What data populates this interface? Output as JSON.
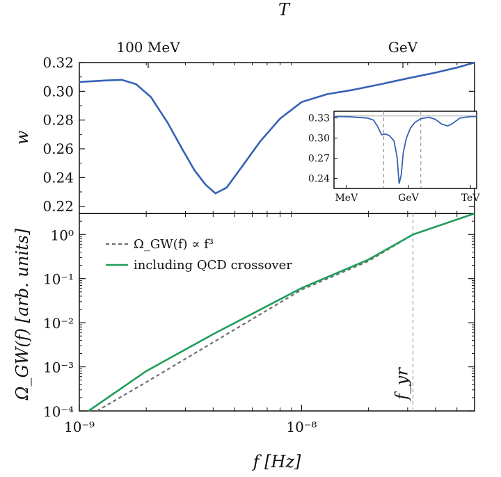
{
  "chart_data": [
    {
      "type": "line",
      "panel": "top",
      "top_axis_label": "T",
      "top_tick_labels": [
        "100 MeV",
        "GeV"
      ],
      "ylabel": "w",
      "y_ticks": [
        "0.32",
        "0.30",
        "0.28",
        "0.26",
        "0.24",
        "0.22"
      ],
      "ylim": [
        0.215,
        0.32
      ],
      "xlim": [
        1e-09,
        6e-08
      ],
      "x_scale": "log",
      "grid": false,
      "series": [
        {
          "color": "#3562b4",
          "x": [
            1e-09,
            1.3e-09,
            1.55e-09,
            1.8e-09,
            2.1e-09,
            2.5e-09,
            2.9e-09,
            3.3e-09,
            3.7e-09,
            4.1e-09,
            4.6e-09,
            5.3e-09,
            6.5e-09,
            8e-09,
            1e-08,
            1.3e-08,
            1.7e-08,
            2.2e-08,
            3e-08,
            4e-08,
            5e-08,
            6e-08
          ],
          "values": [
            0.3065,
            0.3075,
            0.308,
            0.305,
            0.296,
            0.278,
            0.26,
            0.245,
            0.235,
            0.229,
            0.233,
            0.246,
            0.265,
            0.281,
            0.2925,
            0.298,
            0.301,
            0.3045,
            0.309,
            0.313,
            0.3165,
            0.32
          ]
        }
      ],
      "inset": {
        "type": "line",
        "x_tick_labels": [
          "MeV",
          "GeV",
          "TeV"
        ],
        "y_tick_labels": [
          "0.33",
          "0.30",
          "0.27",
          "0.24"
        ],
        "ylim": [
          0.225,
          0.34
        ],
        "xlim_log10_GeV": [
          -3.6,
          3.3
        ],
        "x_scale": "log",
        "reference_line": 0.333,
        "vertical_dashed_log10_GeV": [
          -1.2,
          0.6
        ],
        "series": [
          {
            "color": "#3562b4",
            "x_log10_GeV": [
              -3.6,
              -3.0,
              -2.5,
              -2.0,
              -1.7,
              -1.5,
              -1.3,
              -1.1,
              -0.95,
              -0.9,
              -0.7,
              -0.55,
              -0.45,
              -0.35,
              -0.25,
              -0.1,
              0.1,
              0.3,
              0.6,
              1.0,
              1.3,
              1.6,
              1.9,
              2.1,
              2.5,
              3.0,
              3.3
            ],
            "values": [
              0.332,
              0.332,
              0.331,
              0.33,
              0.327,
              0.318,
              0.305,
              0.306,
              0.304,
              0.303,
              0.296,
              0.272,
              0.232,
              0.245,
              0.278,
              0.3,
              0.315,
              0.323,
              0.329,
              0.331,
              0.328,
              0.321,
              0.318,
              0.321,
              0.33,
              0.332,
              0.332
            ]
          }
        ]
      }
    },
    {
      "type": "line",
      "panel": "bottom",
      "xlabel": "f [Hz]",
      "ylabel": "Ω_GW(f) [arb. units]",
      "x_ticks": [
        "10⁻⁹",
        "10⁻⁸"
      ],
      "y_ticks": [
        "10⁰",
        "10⁻¹",
        "10⁻²",
        "10⁻³",
        "10⁻⁴"
      ],
      "xlim": [
        1e-09,
        6e-08
      ],
      "ylim": [
        0.0001,
        3
      ],
      "x_scale": "log",
      "y_scale": "log",
      "grid": false,
      "vline_label": "f_yr",
      "vline_x": 3.17e-08,
      "series": [
        {
          "name": "Ω_GW(f) ∝ f³",
          "style": "dashed",
          "color": "#6e6e6e",
          "x": [
            1.2e-09,
            2e-09,
            4e-09,
            1e-08,
            2e-08,
            3.17e-08,
            6e-08
          ],
          "values": [
            0.0001,
            0.00045,
            0.0036,
            0.056,
            0.25,
            1.0,
            6.78
          ]
        },
        {
          "name": "including QCD crossover",
          "style": "solid",
          "color": "#1f9e5a",
          "x": [
            1.1e-09,
            2e-09,
            4e-09,
            1e-08,
            2e-08,
            3.17e-08,
            6e-08
          ],
          "values": [
            0.0001,
            0.0008,
            0.0055,
            0.061,
            0.27,
            1.0,
            4.6
          ]
        }
      ]
    }
  ]
}
